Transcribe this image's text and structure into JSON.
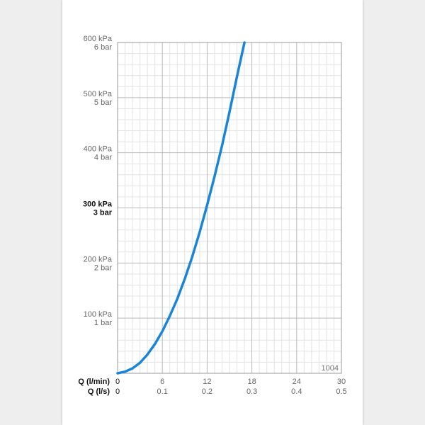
{
  "chart_data": {
    "type": "line",
    "chart_code": "1004",
    "x_axis_name_primary": "Q (l/min)",
    "x_axis_name_secondary": "Q (l/s)",
    "x_ticks_primary": [
      "0",
      "6",
      "12",
      "18",
      "24",
      "30"
    ],
    "x_ticks_secondary": [
      "0",
      "0.1",
      "0.2",
      "0.3",
      "0.4",
      "0.5"
    ],
    "y_ticks_kpa": [
      "100 kPa",
      "200 kPa",
      "300 kPa",
      "400 kPa",
      "500 kPa",
      "600 kPa"
    ],
    "y_ticks_bar": [
      "1 bar",
      "2 bar",
      "3 bar",
      "4 bar",
      "5 bar",
      "6 bar"
    ],
    "highlight_tick": "300 kPa",
    "xlim": [
      0,
      30
    ],
    "ylim": [
      0,
      600
    ],
    "grid": true,
    "series_color": "#1a85d6",
    "series": [
      {
        "x": [
          0,
          1,
          2,
          3,
          4,
          5,
          6,
          7,
          8,
          9,
          10,
          11,
          12,
          13,
          14,
          15,
          16,
          17
        ],
        "y": [
          0,
          3,
          9,
          19,
          34,
          53,
          76,
          104,
          135,
          171,
          211,
          256,
          305,
          357,
          413,
          474,
          538,
          600
        ]
      }
    ]
  }
}
